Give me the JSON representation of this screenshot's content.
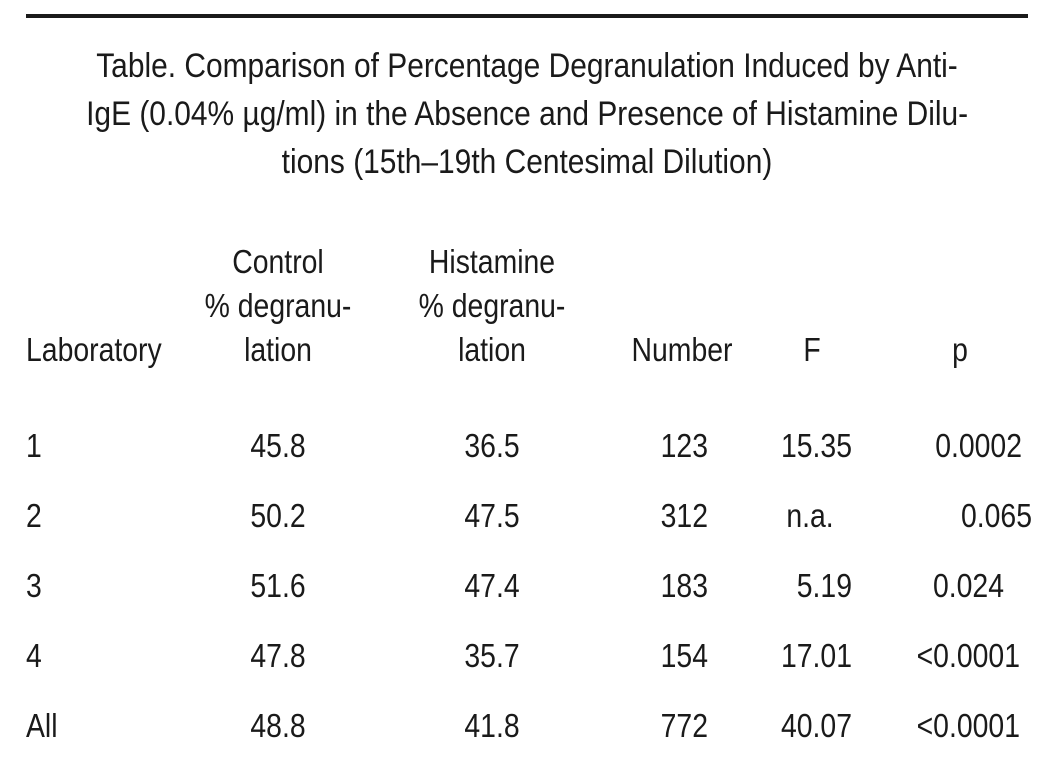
{
  "caption": {
    "lines": [
      "Table. Comparison of Percentage Degranulation Induced by Anti-",
      "IgE (0.04% µg/ml) in the Absence and Presence of Histamine Dilu-",
      "tions (15th–19th Centesimal Dilution)"
    ]
  },
  "table": {
    "headers": {
      "laboratory": "Laboratory",
      "control": [
        "Control",
        "% degranu-",
        "lation"
      ],
      "histamine": [
        "Histamine",
        "% degranu-",
        "lation"
      ],
      "number": "Number",
      "f": "F",
      "p": "p"
    },
    "rows": [
      {
        "laboratory": "1",
        "control": "45.8",
        "histamine": "36.5",
        "number": "123",
        "f": "15.35",
        "p": "0.0002"
      },
      {
        "laboratory": "2",
        "control": "50.2",
        "histamine": "47.5",
        "number": "312",
        "f": "n.a.",
        "p": "0.065"
      },
      {
        "laboratory": "3",
        "control": "51.6",
        "histamine": "47.4",
        "number": "183",
        "f": "5.19",
        "p": "0.024"
      },
      {
        "laboratory": "4",
        "control": "47.8",
        "histamine": "35.7",
        "number": "154",
        "f": "17.01",
        "p": "<0.0001"
      },
      {
        "laboratory": "All",
        "control": "48.8",
        "histamine": "41.8",
        "number": "772",
        "f": "40.07",
        "p": "<0.0001"
      }
    ]
  }
}
